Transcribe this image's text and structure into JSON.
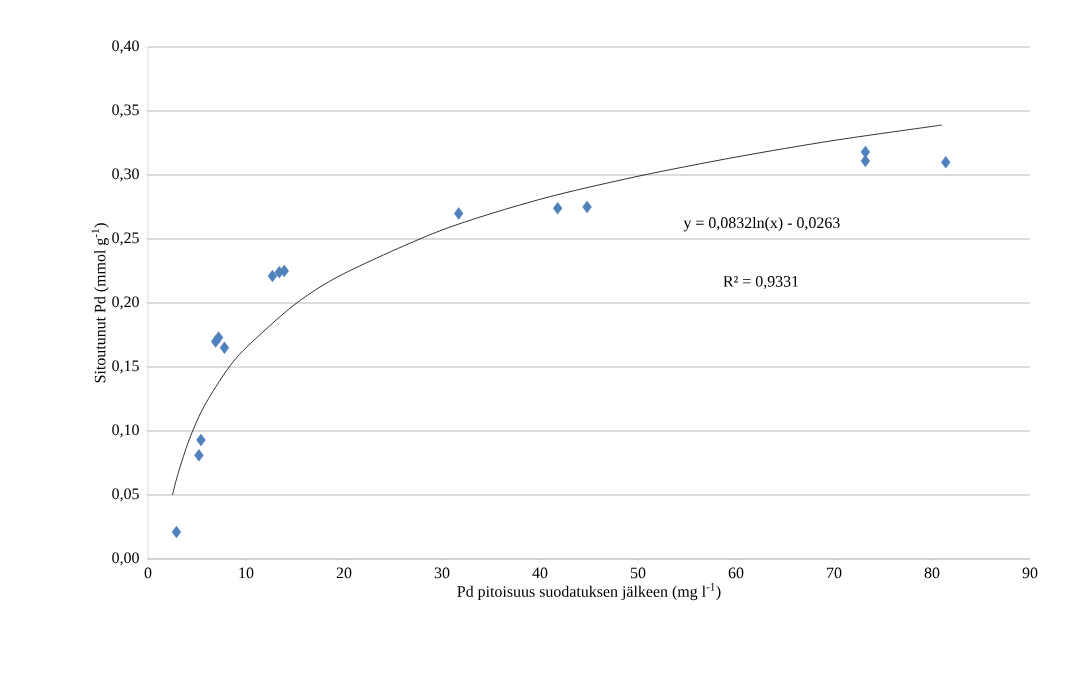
{
  "chart_data": {
    "type": "scatter",
    "xlabel": "Pd pitoisuus  suodatuksen jälkeen (mg l$^{-1}$)",
    "ylabel": "Sitoutunut Pd (mmol g$^{-1}$)",
    "annotations": [
      "y = 0,0832ln(x)  - 0,0263",
      "R² = 0,9331"
    ],
    "xlim": [
      0,
      90
    ],
    "xticks": [
      0,
      10,
      20,
      30,
      40,
      50,
      60,
      70,
      80,
      90
    ],
    "ylim": [
      0,
      0.4
    ],
    "yticks": [
      {
        "value": 0,
        "label": "0,00"
      },
      {
        "value": 0.05,
        "label": "0,05"
      },
      {
        "value": 0.1,
        "label": "0,10"
      },
      {
        "value": 0.15,
        "label": "0,15"
      },
      {
        "value": 0.2,
        "label": "0,20"
      },
      {
        "value": 0.25,
        "label": "0,25"
      },
      {
        "value": 0.3,
        "label": "0,30"
      },
      {
        "value": 0.35,
        "label": "0,35"
      },
      {
        "value": 0.4,
        "label": "0,40"
      }
    ],
    "grid": "y",
    "series": [
      {
        "type": "scatter",
        "marker": "diamond",
        "color": "#4f81bd",
        "x": [
          2.9,
          5.2,
          5.4,
          6.9,
          7.2,
          7.8,
          12.7,
          13.4,
          13.9,
          31.7,
          41.8,
          44.8,
          73.2,
          73.2,
          81.4
        ],
        "values": [
          0.021,
          0.081,
          0.093,
          0.17,
          0.173,
          0.165,
          0.221,
          0.224,
          0.225,
          0.27,
          0.274,
          0.275,
          0.318,
          0.311,
          0.31
        ]
      },
      {
        "type": "line",
        "marker": "none",
        "line_style": "solid",
        "color": "#000000",
        "x": [
          2.5,
          3,
          4,
          5,
          6,
          8,
          10,
          15,
          20,
          30,
          40,
          50,
          60,
          70,
          81
        ],
        "values": [
          0.05,
          0.065,
          0.089,
          0.108,
          0.123,
          0.147,
          0.165,
          0.199,
          0.223,
          0.257,
          0.281,
          0.299,
          0.314,
          0.327,
          0.339
        ]
      }
    ]
  }
}
